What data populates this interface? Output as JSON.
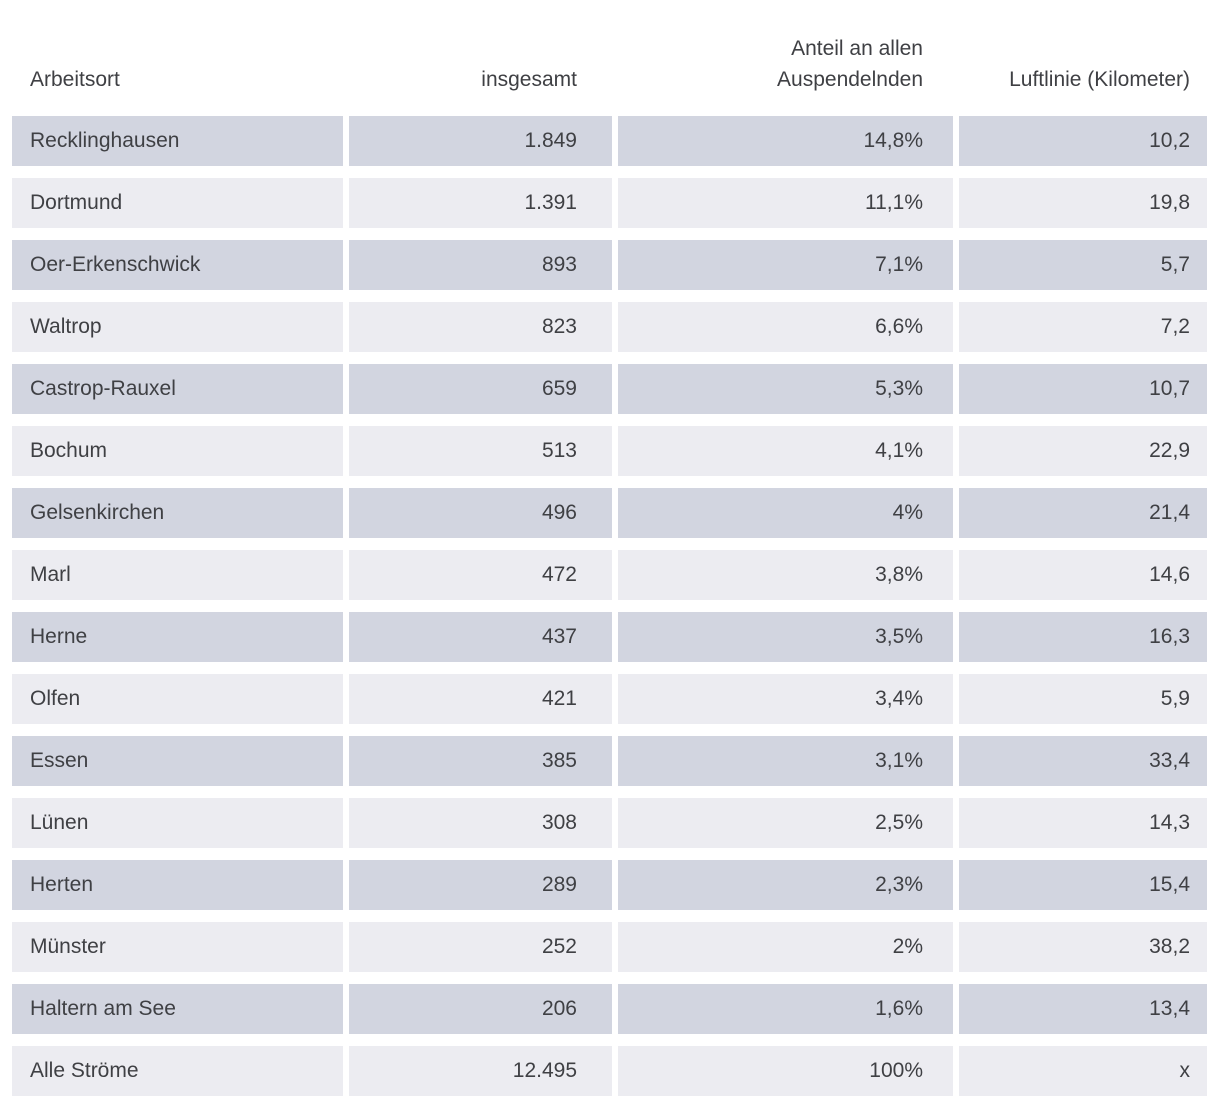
{
  "table": {
    "headers": {
      "arbeitsort": "Arbeitsort",
      "insgesamt": "insgesamt",
      "anteil": "Anteil an allen\nAuspendelnden",
      "luftlinie": "Luftlinie (Kilometer)"
    },
    "rows": [
      {
        "arbeitsort": "Recklinghausen",
        "insgesamt": "1.849",
        "anteil": "14,8%",
        "luftlinie": "10,2"
      },
      {
        "arbeitsort": "Dortmund",
        "insgesamt": "1.391",
        "anteil": "11,1%",
        "luftlinie": "19,8"
      },
      {
        "arbeitsort": "Oer-Erkenschwick",
        "insgesamt": "893",
        "anteil": "7,1%",
        "luftlinie": "5,7"
      },
      {
        "arbeitsort": "Waltrop",
        "insgesamt": "823",
        "anteil": "6,6%",
        "luftlinie": "7,2"
      },
      {
        "arbeitsort": "Castrop-Rauxel",
        "insgesamt": "659",
        "anteil": "5,3%",
        "luftlinie": "10,7"
      },
      {
        "arbeitsort": "Bochum",
        "insgesamt": "513",
        "anteil": "4,1%",
        "luftlinie": "22,9"
      },
      {
        "arbeitsort": "Gelsenkirchen",
        "insgesamt": "496",
        "anteil": "4%",
        "luftlinie": "21,4"
      },
      {
        "arbeitsort": "Marl",
        "insgesamt": "472",
        "anteil": "3,8%",
        "luftlinie": "14,6"
      },
      {
        "arbeitsort": "Herne",
        "insgesamt": "437",
        "anteil": "3,5%",
        "luftlinie": "16,3"
      },
      {
        "arbeitsort": "Olfen",
        "insgesamt": "421",
        "anteil": "3,4%",
        "luftlinie": "5,9"
      },
      {
        "arbeitsort": "Essen",
        "insgesamt": "385",
        "anteil": "3,1%",
        "luftlinie": "33,4"
      },
      {
        "arbeitsort": "Lünen",
        "insgesamt": "308",
        "anteil": "2,5%",
        "luftlinie": "14,3"
      },
      {
        "arbeitsort": "Herten",
        "insgesamt": "289",
        "anteil": "2,3%",
        "luftlinie": "15,4"
      },
      {
        "arbeitsort": "Münster",
        "insgesamt": "252",
        "anteil": "2%",
        "luftlinie": "38,2"
      },
      {
        "arbeitsort": "Haltern am See",
        "insgesamt": "206",
        "anteil": "1,6%",
        "luftlinie": "13,4"
      },
      {
        "arbeitsort": "Alle Ströme",
        "insgesamt": "12.495",
        "anteil": "100%",
        "luftlinie": "x"
      }
    ]
  },
  "colors": {
    "row_dark": "#d2d5e0",
    "row_light": "#ececf1",
    "text": "#3f4044",
    "background": "#ffffff"
  },
  "chart_data": {
    "type": "table",
    "title": "",
    "columns": [
      "Arbeitsort",
      "insgesamt",
      "Anteil an allen Auspendelnden",
      "Luftlinie (Kilometer)"
    ],
    "rows": [
      [
        "Recklinghausen",
        "1.849",
        "14,8%",
        "10,2"
      ],
      [
        "Dortmund",
        "1.391",
        "11,1%",
        "19,8"
      ],
      [
        "Oer-Erkenschwick",
        "893",
        "7,1%",
        "5,7"
      ],
      [
        "Waltrop",
        "823",
        "6,6%",
        "7,2"
      ],
      [
        "Castrop-Rauxel",
        "659",
        "5,3%",
        "10,7"
      ],
      [
        "Bochum",
        "513",
        "4,1%",
        "22,9"
      ],
      [
        "Gelsenkirchen",
        "496",
        "4%",
        "21,4"
      ],
      [
        "Marl",
        "472",
        "3,8%",
        "14,6"
      ],
      [
        "Herne",
        "437",
        "3,5%",
        "16,3"
      ],
      [
        "Olfen",
        "421",
        "3,4%",
        "5,9"
      ],
      [
        "Essen",
        "385",
        "3,1%",
        "33,4"
      ],
      [
        "Lünen",
        "308",
        "2,5%",
        "14,3"
      ],
      [
        "Herten",
        "289",
        "2,3%",
        "15,4"
      ],
      [
        "Münster",
        "252",
        "2%",
        "38,2"
      ],
      [
        "Haltern am See",
        "206",
        "1,6%",
        "13,4"
      ],
      [
        "Alle Ströme",
        "12.495",
        "100%",
        "x"
      ]
    ]
  }
}
